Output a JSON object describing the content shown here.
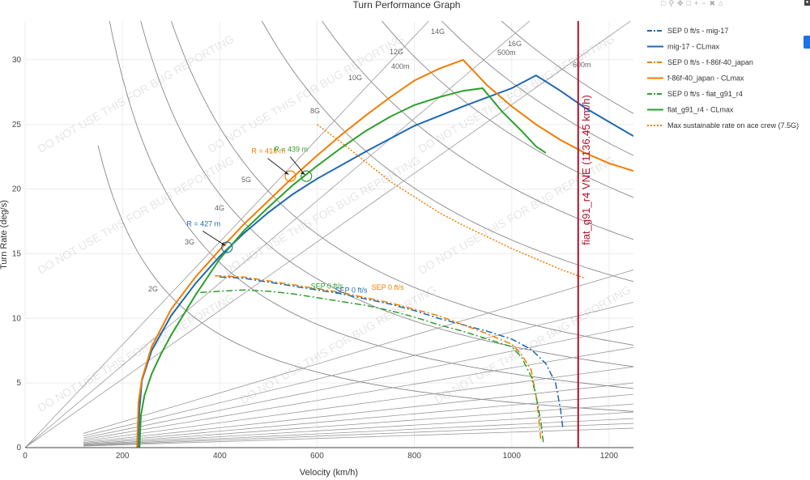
{
  "chart_data": {
    "type": "line",
    "title": "Turn Performance Graph",
    "xlabel": "Velocity (km/h)",
    "ylabel": "Turn Rate (deg/s)",
    "xlim": [
      0,
      1250
    ],
    "ylim": [
      0,
      33
    ],
    "x_ticks": [
      0,
      200,
      400,
      600,
      800,
      1000,
      1200
    ],
    "y_ticks": [
      0,
      5,
      10,
      15,
      20,
      25,
      30
    ],
    "grid": true,
    "watermark": "DO NOT USE THIS FOR BUG REPORTING",
    "g_lines": {
      "values": [
        2,
        3,
        4,
        5,
        8,
        10,
        12,
        14,
        16
      ],
      "labels": [
        "2G",
        "3G",
        "4G",
        "5G",
        "8G",
        "10G",
        "12G",
        "14G",
        "16G"
      ]
    },
    "radius_lines": {
      "values": [
        400,
        500,
        600
      ],
      "labels": [
        "400m",
        "500m",
        "600m"
      ]
    },
    "vne_line": {
      "x": 1136.45,
      "label": "fiat_g91_r4 VNE (1136.45 km/h)",
      "color": "#b0102a"
    },
    "series": [
      {
        "name": "SEP 0 ft/s - mig-17",
        "color": "#1f68b0",
        "dash": "dashdot",
        "x": [
          400,
          450,
          500,
          550,
          600,
          650,
          700,
          750,
          800,
          850,
          900,
          950,
          1000,
          1040,
          1070,
          1090,
          1100,
          1105
        ],
        "y": [
          13.2,
          13.1,
          12.8,
          12.5,
          12.2,
          11.9,
          11.5,
          11.1,
          10.6,
          10.0,
          9.5,
          9.0,
          8.4,
          7.6,
          6.5,
          5.0,
          3.0,
          1.5
        ]
      },
      {
        "name": "mig-17 - CLmax",
        "color": "#1f68b0",
        "dash": "solid",
        "x": [
          232,
          235,
          240,
          260,
          300,
          350,
          400,
          450,
          500,
          550,
          600,
          700,
          800,
          900,
          1000,
          1050,
          1100,
          1150,
          1200,
          1250
        ],
        "y": [
          0,
          3,
          5.2,
          7.5,
          10.2,
          12.7,
          14.8,
          16.6,
          18.2,
          19.6,
          20.8,
          22.9,
          24.9,
          26.4,
          27.8,
          28.8,
          27.6,
          26.3,
          25.2,
          24.1
        ]
      },
      {
        "name": "SEP 0 ft/s - f-86f-40_japan",
        "color": "#f07d00",
        "dash": "dashdot",
        "x": [
          390,
          450,
          500,
          550,
          600,
          650,
          700,
          750,
          800,
          850,
          900,
          950,
          1000,
          1020,
          1040,
          1050,
          1055,
          1060
        ],
        "y": [
          13.3,
          13.2,
          12.9,
          12.6,
          12.3,
          12.0,
          11.6,
          11.2,
          10.7,
          10.2,
          9.5,
          8.8,
          8.0,
          7.2,
          6.0,
          4.0,
          2.5,
          0.5
        ]
      },
      {
        "name": "f-86f-40_japan - CLmax",
        "color": "#f07d00",
        "dash": "solid",
        "x": [
          230,
          233,
          240,
          260,
          300,
          350,
          400,
          450,
          500,
          550,
          600,
          650,
          700,
          750,
          800,
          850,
          900,
          950,
          1000,
          1050,
          1100,
          1150,
          1200,
          1250
        ],
        "y": [
          0,
          3.5,
          5.3,
          7.8,
          10.7,
          13.2,
          15.3,
          17.3,
          19.1,
          20.9,
          22.6,
          24.2,
          25.7,
          27.1,
          28.4,
          29.3,
          30.0,
          28.0,
          26.4,
          25.0,
          23.8,
          22.8,
          22.0,
          21.4
        ]
      },
      {
        "name": "SEP 0 ft/s - fiat_g91_r4",
        "color": "#2ca02c",
        "dash": "dashdot",
        "x": [
          360,
          400,
          450,
          500,
          550,
          600,
          650,
          700,
          750,
          800,
          850,
          900,
          950,
          1000,
          1020,
          1040,
          1050,
          1060,
          1065
        ],
        "y": [
          12.0,
          12.1,
          12.2,
          12.1,
          11.9,
          11.6,
          11.3,
          11.0,
          10.6,
          10.1,
          9.5,
          9.0,
          8.4,
          7.8,
          7.0,
          5.5,
          4.0,
          2.0,
          0.3
        ]
      },
      {
        "name": "fiat_g91_r4 - CLmax",
        "color": "#2ca02c",
        "dash": "solid",
        "x": [
          235,
          238,
          245,
          260,
          280,
          300,
          350,
          400,
          450,
          500,
          550,
          600,
          650,
          700,
          750,
          800,
          850,
          900,
          940,
          980,
          1020,
          1050,
          1070
        ],
        "y": [
          0,
          2.5,
          4.0,
          5.7,
          7.3,
          8.7,
          11.8,
          14.6,
          16.8,
          18.6,
          20.3,
          21.8,
          23.2,
          24.5,
          25.6,
          26.5,
          27.1,
          27.6,
          27.8,
          26.0,
          24.5,
          23.3,
          22.8
        ]
      },
      {
        "name": "Max sustainable rate on ace crew (7.5G)",
        "color": "#f07d00",
        "dash": "dot",
        "x": [
          600,
          650,
          700,
          750,
          800,
          850,
          900,
          950,
          1000,
          1050,
          1100,
          1150
        ],
        "y": [
          25.0,
          23.6,
          22.1,
          20.6,
          19.4,
          18.2,
          17.2,
          16.3,
          15.4,
          14.6,
          13.8,
          13.1
        ]
      }
    ],
    "annotations": [
      {
        "text": "R = 427 m",
        "x": 415,
        "y": 15.5,
        "color": "#1f68b0"
      },
      {
        "text": "R = 418 m",
        "x": 545,
        "y": 21.0,
        "color": "#f07d00"
      },
      {
        "text": "R = 439 m",
        "x": 578,
        "y": 21.0,
        "color": "#2ca02c"
      }
    ],
    "sep_labels": [
      {
        "text": "SEP 0 ft/s",
        "x": 620,
        "y": 12.3,
        "color": "#2ca02c"
      },
      {
        "text": "SEP 0 ft/s",
        "x": 670,
        "y": 12.0,
        "color": "#1f68b0"
      },
      {
        "text": "SEP 0 ft/s",
        "x": 745,
        "y": 12.2,
        "color": "#f07d00"
      }
    ]
  }
}
